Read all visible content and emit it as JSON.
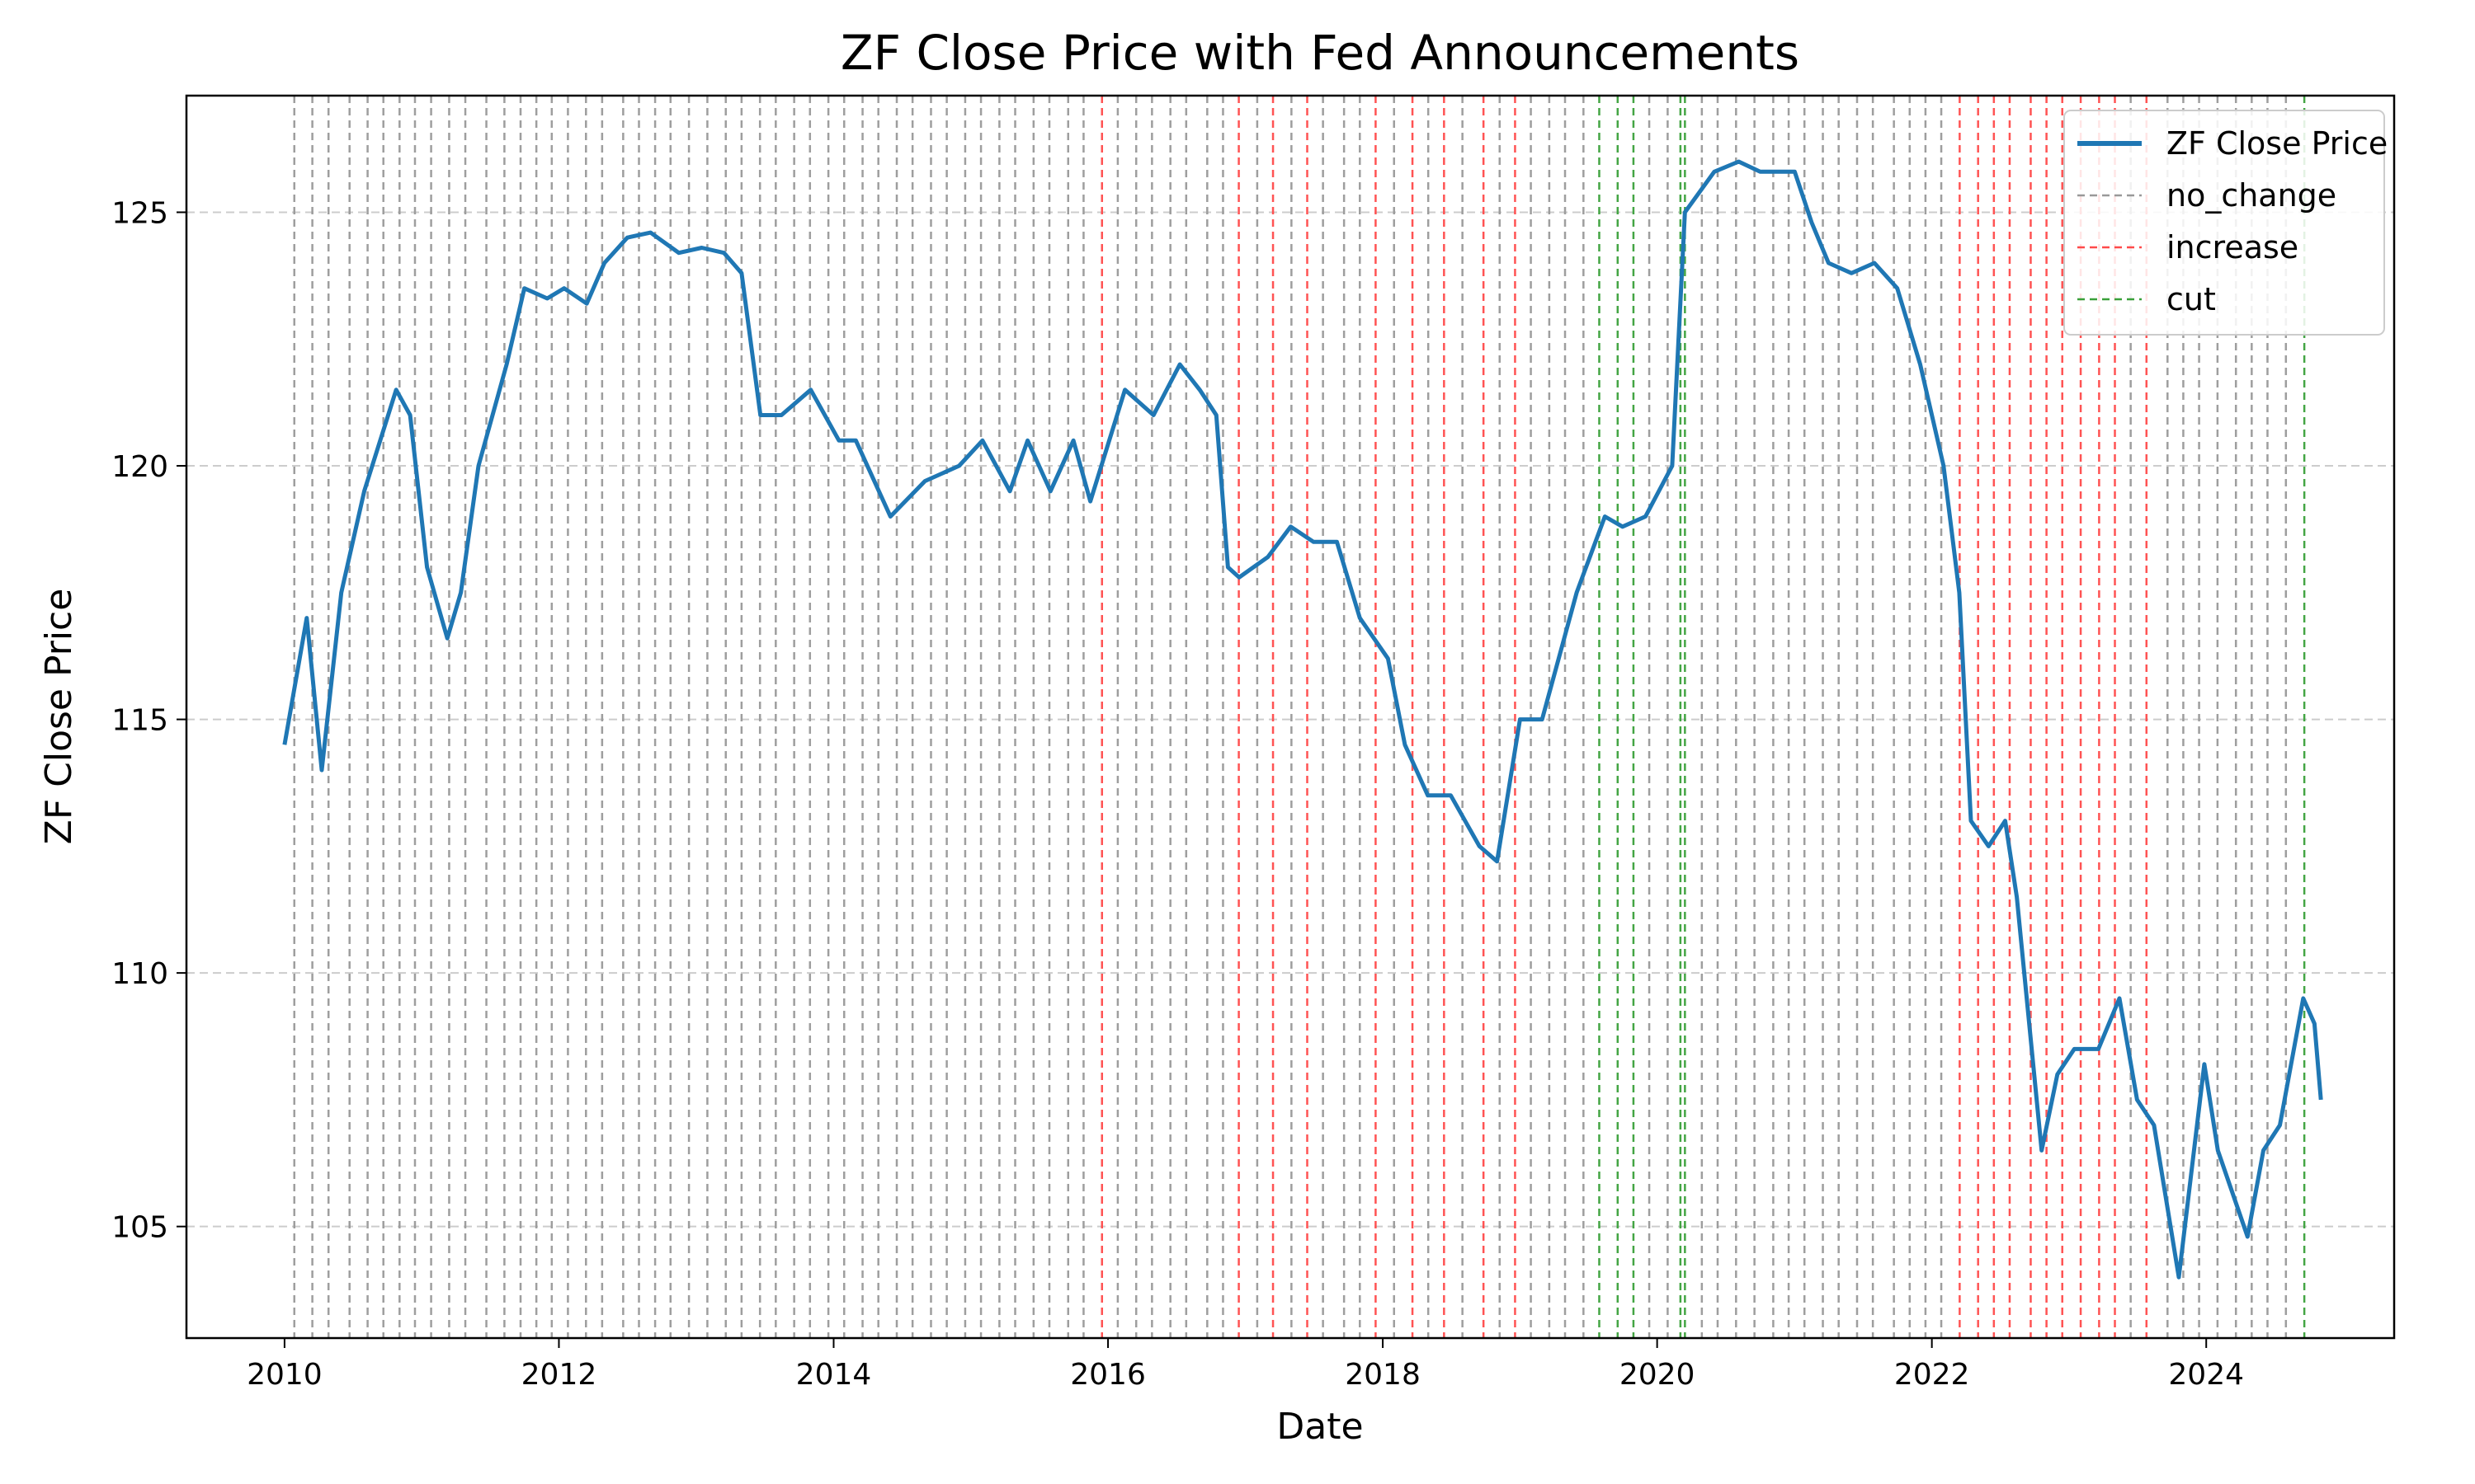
{
  "chart_data": {
    "type": "line",
    "title": "ZF Close Price with Fed Announcements",
    "xlabel": "Date",
    "ylabel": "ZF Close Price",
    "xlim": [
      "2009-04-15",
      "2025-05-15"
    ],
    "ylim": [
      102.8,
      127.3
    ],
    "x_ticks": [
      "2010",
      "2012",
      "2014",
      "2016",
      "2018",
      "2020",
      "2022",
      "2024"
    ],
    "y_ticks": [
      105,
      110,
      115,
      120,
      125
    ],
    "grid": {
      "horizontal": true,
      "vertical": false,
      "style": "dashed"
    },
    "legend_position": "top-right",
    "colors": {
      "series": "#1f77b4",
      "no_change": "#999999",
      "increase": "#ff4a4a",
      "cut": "#3aa03a",
      "grid": "#cccccc"
    },
    "series": [
      {
        "name": "ZF Close Price",
        "x": [
          "2010-01-01",
          "2010-03-01",
          "2010-04-10",
          "2010-06-01",
          "2010-08-01",
          "2010-10-25",
          "2010-12-01",
          "2011-01-15",
          "2011-03-10",
          "2011-04-15",
          "2011-06-01",
          "2011-08-15",
          "2011-10-01",
          "2011-12-01",
          "2012-01-15",
          "2012-03-15",
          "2012-05-01",
          "2012-07-01",
          "2012-09-01",
          "2012-11-15",
          "2013-01-15",
          "2013-03-15",
          "2013-05-01",
          "2013-06-20",
          "2013-08-15",
          "2013-11-01",
          "2014-01-15",
          "2014-03-01",
          "2014-06-01",
          "2014-09-01",
          "2014-12-01",
          "2015-02-01",
          "2015-04-15",
          "2015-06-01",
          "2015-08-01",
          "2015-10-01",
          "2015-11-15",
          "2016-02-15",
          "2016-05-01",
          "2016-07-10",
          "2016-09-01",
          "2016-10-15",
          "2016-11-15",
          "2016-12-15",
          "2017-03-01",
          "2017-05-01",
          "2017-07-01",
          "2017-09-01",
          "2017-11-01",
          "2018-01-15",
          "2018-03-01",
          "2018-05-01",
          "2018-07-01",
          "2018-09-15",
          "2018-11-01",
          "2019-01-01",
          "2019-03-01",
          "2019-06-01",
          "2019-08-15",
          "2019-10-01",
          "2019-12-01",
          "2020-02-10",
          "2020-03-15",
          "2020-06-01",
          "2020-08-05",
          "2020-10-01",
          "2021-01-01",
          "2021-02-15",
          "2021-04-01",
          "2021-06-01",
          "2021-08-01",
          "2021-10-01",
          "2021-12-01",
          "2022-02-01",
          "2022-03-15",
          "2022-04-15",
          "2022-06-01",
          "2022-07-15",
          "2022-08-15",
          "2022-10-20",
          "2022-12-01",
          "2023-01-15",
          "2023-03-20",
          "2023-05-15",
          "2023-07-01",
          "2023-08-15",
          "2023-10-20",
          "2023-12-27",
          "2024-02-01",
          "2024-04-20",
          "2024-06-01",
          "2024-07-15",
          "2024-09-15",
          "2024-10-15",
          "2024-11-01"
        ],
        "values": [
          114.5,
          117.0,
          114.0,
          117.5,
          119.5,
          121.5,
          121.0,
          118.0,
          116.6,
          117.5,
          120.0,
          122.0,
          123.5,
          123.3,
          123.5,
          123.2,
          124.0,
          124.5,
          124.6,
          124.2,
          124.3,
          124.2,
          123.8,
          121.0,
          121.0,
          121.5,
          120.5,
          120.5,
          119.0,
          119.7,
          120.0,
          120.5,
          119.5,
          120.5,
          119.5,
          120.5,
          119.3,
          121.5,
          121.0,
          122.0,
          121.5,
          121.0,
          118.0,
          117.8,
          118.2,
          118.8,
          118.5,
          118.5,
          117.0,
          116.2,
          114.5,
          113.5,
          113.5,
          112.5,
          112.2,
          115.0,
          115.0,
          117.5,
          119.0,
          118.8,
          119.0,
          120.0,
          125.0,
          125.8,
          126.0,
          125.8,
          125.8,
          124.8,
          124.0,
          123.8,
          124.0,
          123.5,
          122.0,
          120.0,
          117.5,
          113.0,
          112.5,
          113.0,
          111.5,
          106.5,
          108.0,
          108.5,
          108.5,
          109.5,
          107.5,
          107.0,
          104.0,
          108.2,
          106.5,
          104.8,
          106.5,
          107.0,
          109.5,
          109.0,
          107.5
        ]
      }
    ],
    "events": {
      "no_change": [
        "2010-01-27",
        "2010-03-16",
        "2010-04-28",
        "2010-06-23",
        "2010-08-10",
        "2010-09-21",
        "2010-11-03",
        "2010-12-14",
        "2011-01-26",
        "2011-03-15",
        "2011-04-27",
        "2011-06-22",
        "2011-08-09",
        "2011-09-21",
        "2011-11-02",
        "2011-12-13",
        "2012-01-25",
        "2012-03-13",
        "2012-04-25",
        "2012-06-20",
        "2012-08-01",
        "2012-09-13",
        "2012-10-24",
        "2012-12-12",
        "2013-01-30",
        "2013-03-20",
        "2013-05-01",
        "2013-06-19",
        "2013-07-31",
        "2013-09-18",
        "2013-10-30",
        "2013-12-18",
        "2014-01-29",
        "2014-03-19",
        "2014-04-30",
        "2014-06-18",
        "2014-07-30",
        "2014-09-17",
        "2014-10-29",
        "2014-12-17",
        "2015-01-28",
        "2015-03-18",
        "2015-04-29",
        "2015-06-17",
        "2015-07-29",
        "2015-09-17",
        "2015-10-28",
        "2016-01-27",
        "2016-03-16",
        "2016-04-27",
        "2016-06-15",
        "2016-07-27",
        "2016-09-21",
        "2016-11-02",
        "2017-02-01",
        "2017-05-03",
        "2017-07-26",
        "2017-09-20",
        "2017-11-01",
        "2018-01-31",
        "2018-05-02",
        "2018-08-01",
        "2018-11-08",
        "2019-01-30",
        "2019-03-20",
        "2019-05-01",
        "2019-06-19",
        "2019-12-11",
        "2020-01-29",
        "2020-04-29",
        "2020-06-10",
        "2020-07-29",
        "2020-09-16",
        "2020-11-05",
        "2020-12-16",
        "2021-01-27",
        "2021-03-17",
        "2021-04-28",
        "2021-06-16",
        "2021-07-28",
        "2021-09-22",
        "2021-11-03",
        "2021-12-15",
        "2022-01-26",
        "2023-06-14",
        "2023-09-20",
        "2023-11-01",
        "2023-12-13",
        "2024-01-31",
        "2024-03-20",
        "2024-05-01",
        "2024-06-12",
        "2024-07-31"
      ],
      "increase": [
        "2015-12-16",
        "2016-12-14",
        "2017-03-15",
        "2017-06-14",
        "2017-12-13",
        "2018-03-21",
        "2018-06-13",
        "2018-09-26",
        "2018-12-19",
        "2022-03-16",
        "2022-05-04",
        "2022-06-15",
        "2022-07-27",
        "2022-09-21",
        "2022-11-02",
        "2022-12-14",
        "2023-02-01",
        "2023-03-22",
        "2023-05-03",
        "2023-07-26"
      ],
      "cut": [
        "2019-07-31",
        "2019-09-18",
        "2019-10-30",
        "2020-03-03",
        "2020-03-15",
        "2024-09-18"
      ]
    },
    "legend": [
      {
        "label": "ZF Close Price",
        "key": "series"
      },
      {
        "label": "no_change",
        "key": "no_change"
      },
      {
        "label": "increase",
        "key": "increase"
      },
      {
        "label": "cut",
        "key": "cut"
      }
    ]
  }
}
